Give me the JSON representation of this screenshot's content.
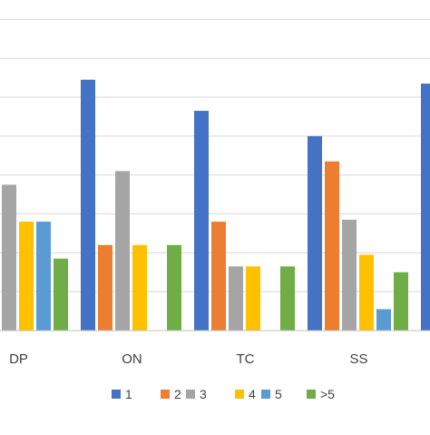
{
  "colors": {
    "background": "#ffffff",
    "gridline": "#d9d9d9",
    "axis": "#bfbfbf",
    "text": "#404040"
  },
  "chart_data": {
    "type": "bar",
    "categories": [
      "DP",
      "ON",
      "TC",
      "SS",
      ""
    ],
    "series": [
      {
        "name": "1",
        "color": "#4472C4",
        "values": [
          null,
          12.9,
          11.3,
          10.0,
          12.7
        ]
      },
      {
        "name": "2",
        "color": "#ED7D31",
        "values": [
          null,
          4.4,
          5.6,
          8.7,
          null
        ]
      },
      {
        "name": "3",
        "color": "#A5A5A5",
        "values": [
          7.5,
          8.2,
          3.3,
          5.7,
          null
        ]
      },
      {
        "name": "4",
        "color": "#FFC000",
        "values": [
          5.6,
          4.4,
          3.3,
          3.9,
          null
        ]
      },
      {
        "name": "5",
        "color": "#5B9BD5",
        "values": [
          5.6,
          null,
          null,
          1.1,
          null
        ]
      },
      {
        "name": ">5",
        "color": "#70AD47",
        "values": [
          3.7,
          4.4,
          3.3,
          3.0,
          null
        ]
      }
    ],
    "ylim": [
      0,
      17
    ],
    "ytick_step": 2,
    "grid": true,
    "legend_position": "bottom"
  }
}
